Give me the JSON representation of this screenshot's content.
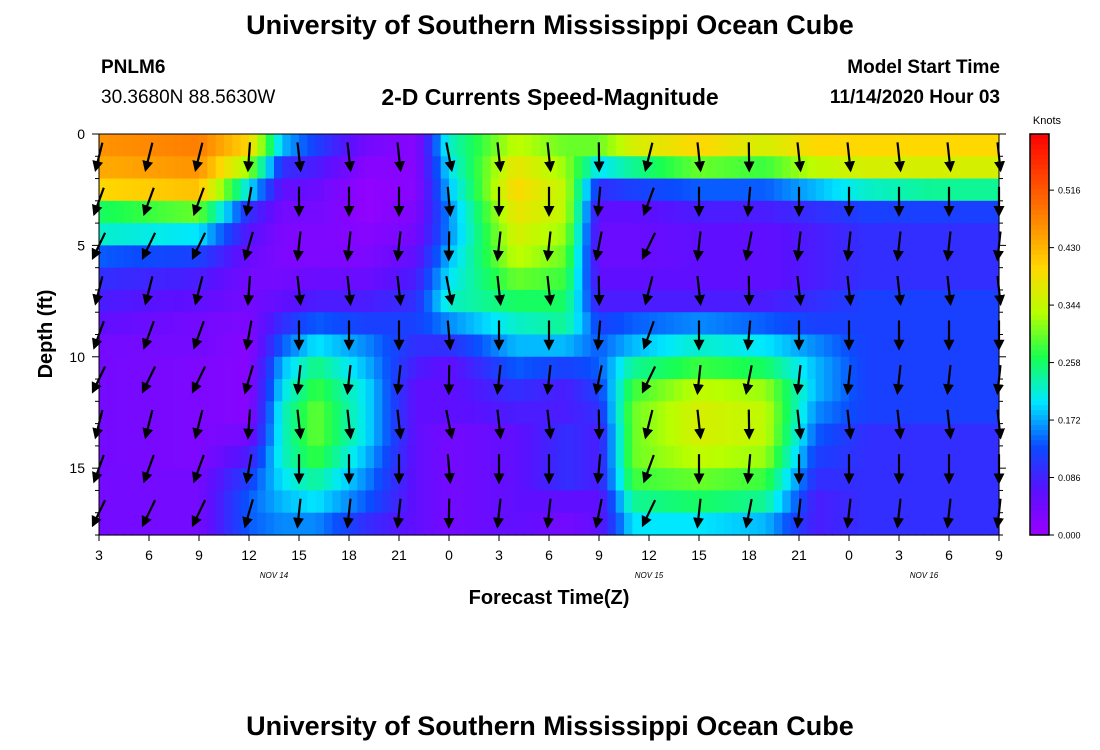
{
  "page": {
    "title_top": "University of Southern Mississippi Ocean Cube",
    "title_bottom": "University of Southern Mississippi Ocean Cube",
    "station_id": "PNLM6",
    "station_coords": "30.3680N 88.5630W",
    "model_label": "Model Start Time",
    "model_time": "11/14/2020 Hour 03"
  },
  "chart_data": {
    "type": "heatmap",
    "title": "2-D Currents Speed-Magnitude",
    "xlabel": "Forecast Time(Z)",
    "ylabel": "Depth (ft)",
    "x_ticks": [
      "3",
      "6",
      "9",
      "12",
      "15",
      "18",
      "21",
      "0",
      "3",
      "6",
      "9",
      "12",
      "15",
      "18",
      "21",
      "0",
      "3",
      "6",
      "9"
    ],
    "date_labels": [
      {
        "text": "NOV 14",
        "at_tick": 3.5
      },
      {
        "text": "NOV 15",
        "at_tick": 11
      },
      {
        "text": "NOV 16",
        "at_tick": 16.5
      }
    ],
    "y_ticks": [
      0,
      5,
      10,
      15
    ],
    "ylim": [
      0,
      18
    ],
    "y_inverted": true,
    "time_range_hours": [
      0,
      54
    ],
    "colorbar": {
      "unit_label": "Knots",
      "range": [
        0,
        0.6
      ],
      "tick_values": [
        0.0,
        0.086,
        0.172,
        0.258,
        0.344,
        0.43,
        0.516
      ],
      "tick_labels": [
        "0.000",
        "0.086",
        "0.172",
        "0.258",
        "0.344",
        "0.430",
        "0.516"
      ],
      "colors": [
        "#9a00ff",
        "#5a10ff",
        "#0a4cff",
        "#00e8ff",
        "#18ff50",
        "#b8ff00",
        "#ffd800",
        "#ff8c00",
        "#ff4600",
        "#ff0000"
      ]
    },
    "depth_levels_ft": [
      0,
      1,
      2,
      3,
      4,
      5,
      6,
      7,
      8,
      9,
      10,
      11,
      12,
      13,
      14,
      15,
      16,
      17,
      18
    ],
    "speed_control_points": [
      {
        "t": 0,
        "v": [
          0.5,
          0.46,
          0.44,
          0.4,
          0.26,
          0.22,
          0.14,
          0.1,
          0.08,
          0.06,
          0.04,
          0.04,
          0.04,
          0.04,
          0.04,
          0.04,
          0.04,
          0.04,
          0.04
        ]
      },
      {
        "t": 6,
        "v": [
          0.52,
          0.48,
          0.46,
          0.42,
          0.3,
          0.2,
          0.12,
          0.08,
          0.06,
          0.04,
          0.04,
          0.03,
          0.03,
          0.03,
          0.03,
          0.03,
          0.04,
          0.04,
          0.04
        ]
      },
      {
        "t": 9,
        "v": [
          0.5,
          0.4,
          0.32,
          0.2,
          0.1,
          0.07,
          0.05,
          0.04,
          0.04,
          0.03,
          0.02,
          0.02,
          0.02,
          0.02,
          0.04,
          0.08,
          0.12,
          0.14,
          0.14
        ]
      },
      {
        "t": 11,
        "v": [
          0.3,
          0.18,
          0.1,
          0.06,
          0.04,
          0.03,
          0.03,
          0.04,
          0.06,
          0.1,
          0.14,
          0.18,
          0.2,
          0.22,
          0.22,
          0.22,
          0.2,
          0.18,
          0.16
        ]
      },
      {
        "t": 13,
        "v": [
          0.18,
          0.12,
          0.08,
          0.05,
          0.04,
          0.03,
          0.03,
          0.05,
          0.08,
          0.14,
          0.2,
          0.25,
          0.28,
          0.3,
          0.3,
          0.28,
          0.24,
          0.2,
          0.16
        ]
      },
      {
        "t": 16,
        "v": [
          0.08,
          0.04,
          0.02,
          0.01,
          0.01,
          0.02,
          0.03,
          0.05,
          0.08,
          0.12,
          0.16,
          0.18,
          0.2,
          0.2,
          0.2,
          0.18,
          0.16,
          0.14,
          0.1
        ]
      },
      {
        "t": 19,
        "v": [
          0.04,
          0.02,
          0.02,
          0.02,
          0.03,
          0.04,
          0.06,
          0.08,
          0.1,
          0.12,
          0.1,
          0.08,
          0.06,
          0.06,
          0.06,
          0.06,
          0.06,
          0.06,
          0.06
        ]
      },
      {
        "t": 21,
        "v": [
          0.2,
          0.22,
          0.2,
          0.18,
          0.16,
          0.16,
          0.18,
          0.2,
          0.22,
          0.16,
          0.1,
          0.06,
          0.06,
          0.06,
          0.04,
          0.04,
          0.04,
          0.04,
          0.04
        ]
      },
      {
        "t": 25,
        "v": [
          0.3,
          0.34,
          0.38,
          0.4,
          0.38,
          0.36,
          0.34,
          0.3,
          0.26,
          0.22,
          0.18,
          0.14,
          0.1,
          0.08,
          0.06,
          0.06,
          0.06,
          0.06,
          0.06
        ]
      },
      {
        "t": 28,
        "v": [
          0.3,
          0.3,
          0.32,
          0.34,
          0.34,
          0.32,
          0.3,
          0.28,
          0.26,
          0.24,
          0.18,
          0.12,
          0.08,
          0.08,
          0.1,
          0.1,
          0.1,
          0.06,
          0.04
        ]
      },
      {
        "t": 30,
        "v": [
          0.36,
          0.3,
          0.2,
          0.1,
          0.06,
          0.05,
          0.05,
          0.06,
          0.08,
          0.12,
          0.14,
          0.14,
          0.12,
          0.1,
          0.08,
          0.08,
          0.08,
          0.06,
          0.06
        ]
      },
      {
        "t": 32,
        "v": [
          0.4,
          0.36,
          0.24,
          0.12,
          0.06,
          0.05,
          0.05,
          0.06,
          0.08,
          0.14,
          0.18,
          0.24,
          0.28,
          0.3,
          0.3,
          0.3,
          0.28,
          0.24,
          0.2
        ]
      },
      {
        "t": 36,
        "v": [
          0.44,
          0.4,
          0.3,
          0.14,
          0.08,
          0.06,
          0.06,
          0.06,
          0.08,
          0.16,
          0.22,
          0.28,
          0.34,
          0.36,
          0.36,
          0.34,
          0.3,
          0.26,
          0.2
        ]
      },
      {
        "t": 40,
        "v": [
          0.4,
          0.36,
          0.28,
          0.14,
          0.08,
          0.06,
          0.06,
          0.06,
          0.08,
          0.14,
          0.2,
          0.26,
          0.32,
          0.34,
          0.34,
          0.32,
          0.28,
          0.24,
          0.18
        ]
      },
      {
        "t": 43,
        "v": [
          0.42,
          0.4,
          0.34,
          0.18,
          0.1,
          0.08,
          0.08,
          0.08,
          0.1,
          0.12,
          0.16,
          0.18,
          0.18,
          0.16,
          0.14,
          0.12,
          0.1,
          0.08,
          0.08
        ]
      },
      {
        "t": 46,
        "v": [
          0.44,
          0.4,
          0.36,
          0.22,
          0.12,
          0.1,
          0.1,
          0.1,
          0.12,
          0.12,
          0.12,
          0.12,
          0.12,
          0.12,
          0.1,
          0.1,
          0.1,
          0.1,
          0.1
        ]
      },
      {
        "t": 50,
        "v": [
          0.44,
          0.4,
          0.36,
          0.24,
          0.12,
          0.1,
          0.1,
          0.1,
          0.12,
          0.12,
          0.12,
          0.12,
          0.12,
          0.12,
          0.1,
          0.1,
          0.1,
          0.1,
          0.1
        ]
      },
      {
        "t": 54,
        "v": [
          0.44,
          0.4,
          0.36,
          0.24,
          0.12,
          0.1,
          0.1,
          0.1,
          0.12,
          0.12,
          0.12,
          0.12,
          0.12,
          0.12,
          0.1,
          0.1,
          0.1,
          0.1,
          0.1
        ]
      }
    ],
    "vector_columns_hours": [
      0,
      3,
      6,
      9,
      12,
      15,
      18,
      21,
      24,
      27,
      30,
      33,
      36,
      39,
      42,
      45,
      48,
      51,
      54
    ],
    "vector_rows_ft": [
      1,
      3,
      5,
      7,
      9,
      11,
      13,
      15,
      17
    ],
    "vector_direction_deg_by_column": [
      200,
      200,
      200,
      190,
      180,
      180,
      180,
      175,
      180,
      180,
      185,
      200,
      180,
      185,
      180,
      180,
      180,
      180,
      180
    ],
    "legend": "right-side colorbar",
    "grid": false
  }
}
